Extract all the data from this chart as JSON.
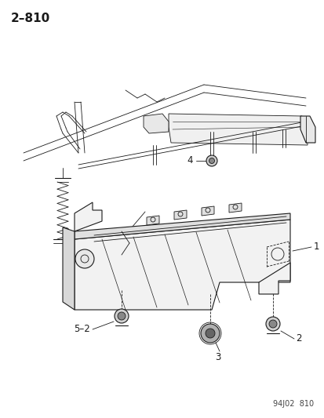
{
  "title": "2–810",
  "footer": "94J02  810",
  "bg_color": "#ffffff",
  "line_color": "#1a1a1a",
  "label_color": "#1a1a1a",
  "title_fontsize": 11,
  "footer_fontsize": 7,
  "label_fontsize": 8.5,
  "figsize": [
    4.14,
    5.33
  ],
  "dpi": 100
}
